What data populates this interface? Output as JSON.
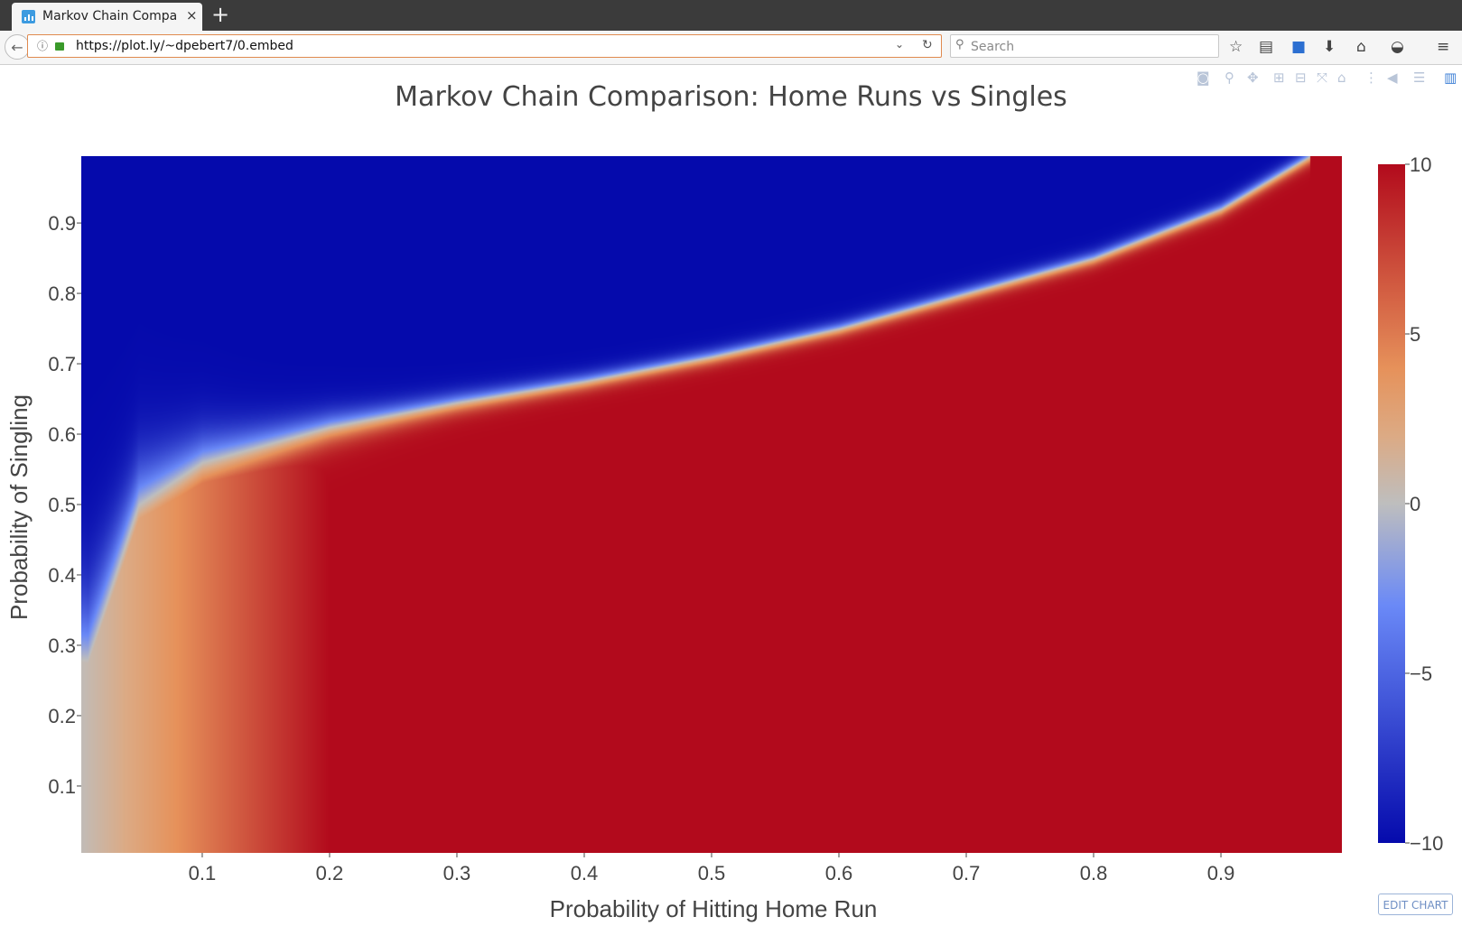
{
  "browser": {
    "tab_title": "Markov Chain Comparison: Home Runs vs Singles",
    "new_tab_icon": "plus-icon",
    "url": "https://plot.ly/~dpebert7/0.embed",
    "search_placeholder": "Search",
    "toolbar_icons": [
      "star-icon",
      "reading-list-icon",
      "pocket-icon",
      "download-icon",
      "home-icon",
      "shield-icon",
      "menu-icon"
    ]
  },
  "plot": {
    "modebar_icons": [
      "camera-icon",
      "zoom-icon",
      "pan-icon",
      "zoom-in-icon",
      "zoom-out-icon",
      "autoscale-icon",
      "reset-axes-icon",
      "spike-lines-icon",
      "hover-closest-icon",
      "hover-compare-icon",
      "plotly-logo-icon"
    ],
    "edit_chart_label": "EDIT CHART",
    "accent": "#6f8fc4"
  },
  "chart_data": {
    "type": "heatmap",
    "title": "Markov Chain Comparison: Home Runs vs Singles",
    "xlabel": "Probability of Hitting Home Run",
    "ylabel": "Probability of Singling",
    "x_ticks": [
      0.1,
      0.2,
      0.3,
      0.4,
      0.5,
      0.6,
      0.7,
      0.8,
      0.9
    ],
    "y_ticks": [
      0.1,
      0.2,
      0.3,
      0.4,
      0.5,
      0.6,
      0.7,
      0.8,
      0.9
    ],
    "xlim": [
      0.005,
      0.995
    ],
    "ylim": [
      0.005,
      0.995
    ],
    "colorscale": "RdBu (reversed)",
    "zlim": [
      -10,
      10
    ],
    "colorbar_ticks": [
      10,
      5,
      0,
      -5,
      -10
    ],
    "colorbar_tick_labels": [
      "10",
      "5",
      "0",
      "−5",
      "−10"
    ],
    "grid": false,
    "z_description_boundary": {
      "note": "z = +10 below boundary (red), z = −10 above boundary (blue)",
      "boundary_x": [
        0.01,
        0.05,
        0.1,
        0.2,
        0.3,
        0.4,
        0.5,
        0.6,
        0.7,
        0.8,
        0.9,
        0.97
      ],
      "boundary_y": [
        0.28,
        0.5,
        0.56,
        0.61,
        0.645,
        0.675,
        0.71,
        0.75,
        0.8,
        0.85,
        0.92,
        0.995
      ]
    }
  }
}
